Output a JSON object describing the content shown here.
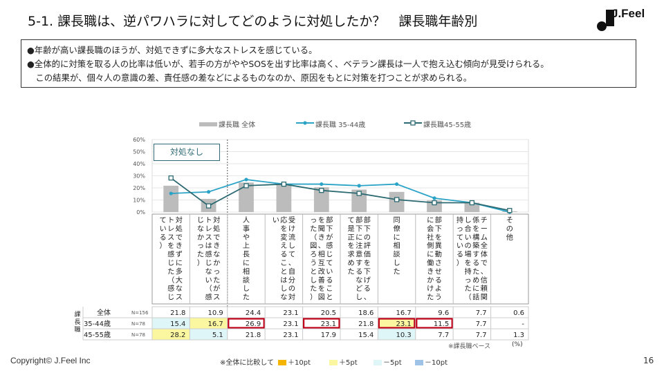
{
  "title": "5-1. 課長職は、逆パワハラに対してどのように対処したか？　課長職年齢別",
  "logo_text": "J.Feel",
  "summary": [
    "●年齢が高い課長職のほうが、対処できずに多大なストレスを感じている。",
    "●全体的に対策を取る人の比率は低いが、若手の方がややSOSを出す比率は高く、ベテラン課長は一人で抱え込む傾向が見受けられる。",
    "　この結果が、個々人の意識の差、責任感の差などによるものなのか、原因をもとに対策を打つことが求められる。"
  ],
  "annotation_box": "対処なし",
  "row_group_label": "課長職",
  "base_note": "※課長職ベース",
  "pct_note": "(%)",
  "copyright": "Copyright©  J.Feel Inc",
  "page_number": "16",
  "color_key": {
    "prefix": "※全体に比較して",
    "items": [
      {
        "label": "＋10pt",
        "color": "#f5b400"
      },
      {
        "label": "＋5pt",
        "color": "#fbf7a0"
      },
      {
        "label": "－5pt",
        "color": "#dff6f8"
      },
      {
        "label": "－10pt",
        "color": "#9fc3e6"
      }
    ]
  },
  "chart_data": {
    "type": "bar",
    "ylim": [
      0,
      60
    ],
    "yticks": [
      "0%",
      "10%",
      "20%",
      "30%",
      "40%",
      "50%",
      "60%"
    ],
    "categories": [
      "対処できずに多大なストレスを感じた（感じている）",
      "対処できなかったがストレスは感じない（感じなかった）",
      "人事や上長に相談した",
      "受け流して、自分の対応を変えることはしない",
      "部下が感じていることを聞き、相互改善を図った（図ろうとした）",
      "部下の評価を下げる、部下に注意するなどして是正を求めた",
      "同僚に相談した",
      "部下を異動させるように会社側に働きかけた",
      "チーム全体で、信頼関係を構築するために話し合いの場を持った（持っている）",
      "その他"
    ],
    "column_labels": [
      "対処できずに多大なストレスを感じた（感じている）",
      "対処できなかったがストレスは感じない（感じなかった）",
      "人事や上長に相談した",
      "受け流して、自分の対応を変えることはしない",
      "部下が感じていることを聞き、相互改善を図った（図ろうとした）",
      "部下の評価を下げる、部下に注意するなどして是正を求めた",
      "同僚に相談した",
      "部下を異動させるように会社側に働きかけた",
      "チーム全体で、信頼関係を構築するために話し合いの場を持った（持っている）",
      "その他"
    ],
    "series": [
      {
        "name": "課長職 全体",
        "kind": "bar",
        "color": "#bcbcbc",
        "values": [
          21.8,
          10.9,
          24.4,
          23.1,
          20.5,
          18.6,
          16.7,
          9.6,
          7.7,
          0.6
        ]
      },
      {
        "name": "課長職 35-44歳",
        "kind": "line",
        "color": "#2aa3c7",
        "values": [
          15.4,
          16.7,
          26.9,
          23.1,
          23.1,
          21.8,
          23.1,
          11.5,
          7.7,
          0
        ]
      },
      {
        "name": "課長職45-55歳",
        "kind": "line",
        "color": "#2c6a72",
        "values": [
          28.2,
          5.1,
          21.8,
          23.1,
          17.9,
          15.4,
          10.3,
          7.7,
          7.7,
          1.3
        ]
      }
    ],
    "table": {
      "rows": [
        {
          "label": "全体",
          "n": "N=156",
          "cells": [
            "21.8",
            "10.9",
            "24.4",
            "23.1",
            "20.5",
            "18.6",
            "16.7",
            "9.6",
            "7.7",
            "0.6"
          ],
          "fills": [
            "",
            "",
            "",
            "",
            "",
            "",
            "",
            "",
            "",
            ""
          ],
          "boxed": [
            false,
            false,
            false,
            false,
            false,
            false,
            false,
            false,
            false,
            false
          ]
        },
        {
          "label": "35-44歳",
          "n": "N=78",
          "cells": [
            "15.4",
            "16.7",
            "26.9",
            "23.1",
            "23.1",
            "21.8",
            "23.1",
            "11.5",
            "7.7",
            "-"
          ],
          "fills": [
            "#dff6f8",
            "#fbf7a0",
            "",
            "",
            "",
            "",
            "#fbf7a0",
            "",
            "",
            ""
          ],
          "boxed": [
            false,
            false,
            true,
            false,
            true,
            false,
            true,
            true,
            false,
            false
          ]
        },
        {
          "label": "45-55歳",
          "n": "N=78",
          "cells": [
            "28.2",
            "5.1",
            "21.8",
            "23.1",
            "17.9",
            "15.4",
            "10.3",
            "7.7",
            "7.7",
            "1.3"
          ],
          "fills": [
            "#fbf7a0",
            "#dff6f8",
            "",
            "",
            "",
            "",
            "#dff6f8",
            "",
            "",
            ""
          ],
          "boxed": [
            false,
            false,
            false,
            false,
            false,
            false,
            false,
            false,
            false,
            false
          ]
        }
      ]
    },
    "grid": true,
    "legend_position": "top"
  }
}
